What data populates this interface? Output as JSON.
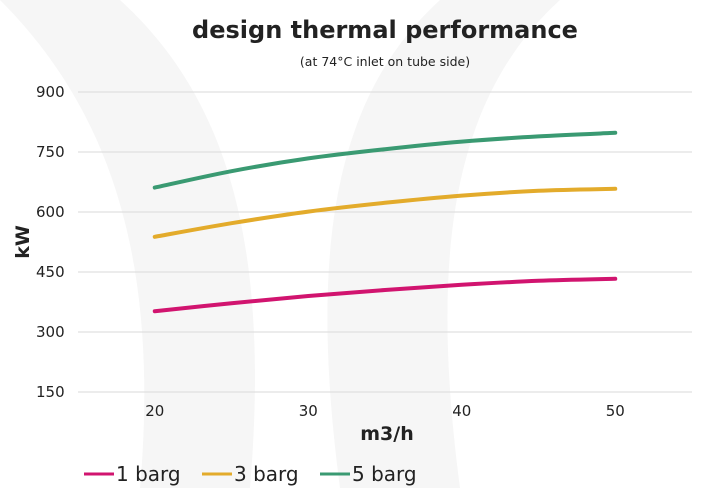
{
  "chart_data": {
    "type": "line",
    "title": "design thermal performance",
    "subtitle": "(at 74°C inlet on tube side)",
    "xlabel": "m3/h",
    "ylabel": "kW",
    "xlim": [
      15,
      55
    ],
    "ylim": [
      150,
      900
    ],
    "x_ticks": [
      "20",
      "30",
      "40",
      "50"
    ],
    "y_ticks": [
      "150",
      "300",
      "450",
      "600",
      "750",
      "900"
    ],
    "grid": "horizontal",
    "legend_position": "bottom-left",
    "x": [
      20,
      25,
      30,
      35,
      40,
      45,
      50
    ],
    "series": [
      {
        "name": "1 barg",
        "color": "#d1146f",
        "values": [
          352,
          372,
          390,
          405,
          418,
          428,
          433
        ]
      },
      {
        "name": "3 barg",
        "color": "#e3ab2b",
        "values": [
          538,
          572,
          601,
          623,
          641,
          653,
          658
        ]
      },
      {
        "name": "5 barg",
        "color": "#3a9a72",
        "values": [
          661,
          702,
          734,
          757,
          776,
          789,
          798
        ]
      }
    ]
  }
}
